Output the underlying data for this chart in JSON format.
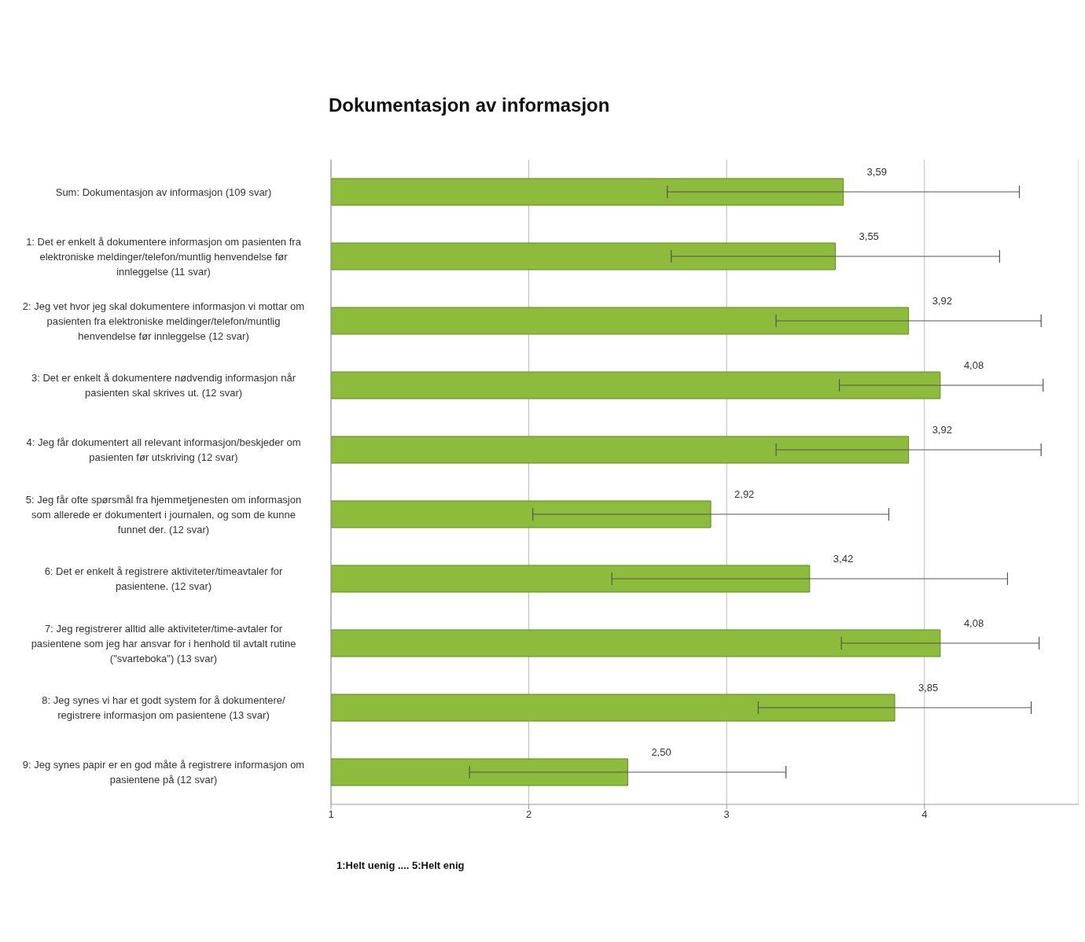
{
  "chart_data": {
    "type": "bar",
    "orientation": "horizontal",
    "title": "Dokumentasjon av informasjon",
    "categories": [
      "Sum: Dokumentasjon av informasjon (109 svar)",
      "1: Det er enkelt å dokumentere informasjon om pasienten fra elektroniske meldinger/telefon/muntlig henvendelse før innleggelse (11 svar)",
      "2: Jeg vet hvor jeg skal dokumentere informasjon vi mottar om pasienten fra elektroniske meldinger/telefon/muntlig henvendelse før innleggelse (12 svar)",
      "3: Det er enkelt å dokumentere nødvendig informasjon når pasienten skal skrives ut. (12 svar)",
      "4: Jeg får dokumentert all relevant informasjon/beskjeder om pasienten før utskriving (12 svar)",
      "5: Jeg får ofte spørsmål fra hjemmetjenesten om informasjon som allerede er dokumentert i journalen, og som de kunne funnet der. (12 svar)",
      "6: Det er enkelt å registrere aktiviteter/timeavtaler for pasientene. (12 svar)",
      "7: Jeg registrerer alltid alle aktiviteter/time-avtaler for pasientene som jeg har ansvar for i henhold til avtalt rutine (\"svarteboka\") (13 svar)",
      "8: Jeg synes vi har et godt system for å dokumentere/ registrere informasjon om pasientene (13 svar)",
      "9: Jeg synes papir er en god måte å registrere informasjon om pasientene på (12 svar)"
    ],
    "values": [
      3.59,
      3.55,
      3.92,
      4.08,
      3.92,
      2.92,
      3.42,
      4.08,
      3.85,
      2.5
    ],
    "value_labels": [
      "3,59",
      "3,55",
      "3,92",
      "4,08",
      "3,92",
      "2,92",
      "3,42",
      "4,08",
      "3,85",
      "2,50"
    ],
    "errors": [
      [
        2.7,
        4.48
      ],
      [
        2.72,
        4.38
      ],
      [
        3.25,
        4.59
      ],
      [
        3.57,
        4.6
      ],
      [
        3.25,
        4.59
      ],
      [
        2.02,
        3.82
      ],
      [
        2.42,
        4.42
      ],
      [
        3.58,
        4.58
      ],
      [
        3.16,
        4.54
      ],
      [
        1.7,
        3.3
      ]
    ],
    "color": "#8dbb3c",
    "xlim": [
      1,
      4.78
    ],
    "xticks": [
      1,
      2,
      3,
      4
    ],
    "grid": "x",
    "legend": false,
    "annotations": [
      "1:Helt uenig .... 5:Helt enig"
    ]
  }
}
